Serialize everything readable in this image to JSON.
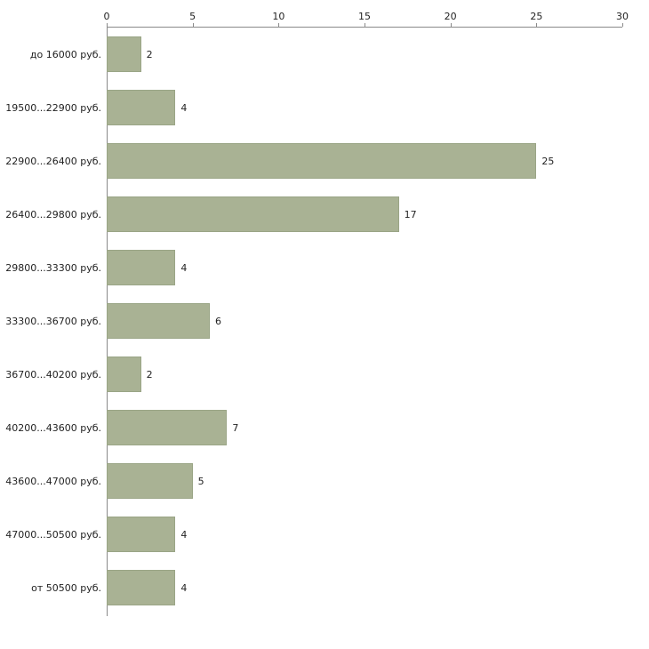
{
  "chart_data": {
    "type": "bar",
    "orientation": "horizontal",
    "title": "",
    "xlabel": "",
    "ylabel": "",
    "categories": [
      "до 16000 руб.",
      "19500...22900 руб.",
      "22900...26400 руб.",
      "26400...29800 руб.",
      "29800...33300 руб.",
      "33300...36700 руб.",
      "36700...40200 руб.",
      "40200...43600 руб.",
      "43600...47000 руб.",
      "47000...50500 руб.",
      "от 50500 руб."
    ],
    "values": [
      2,
      4,
      25,
      17,
      4,
      6,
      2,
      7,
      5,
      4,
      4
    ],
    "xlim": [
      0,
      30
    ],
    "x_ticks": [
      0,
      5,
      10,
      15,
      20,
      25,
      30
    ],
    "legend": null,
    "grid": false,
    "bar_color": "#a9b294",
    "bar_border_color": "#9aa586",
    "axis_color": "#8a8a8a"
  }
}
